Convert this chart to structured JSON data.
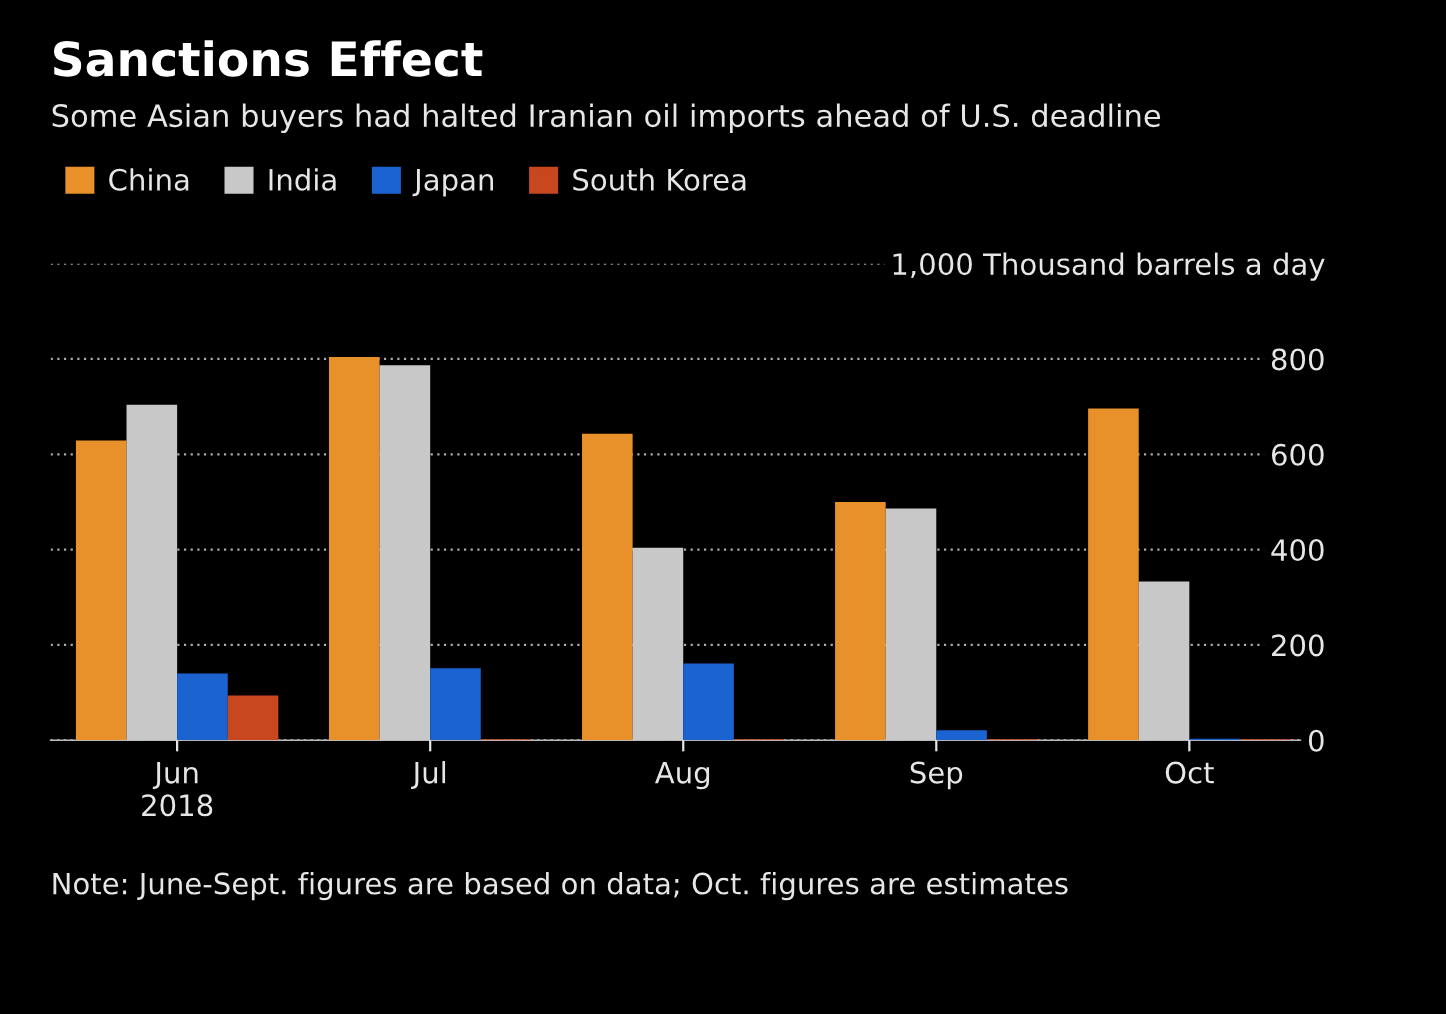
{
  "chart_data": {
    "type": "bar",
    "title": "Sanctions Effect",
    "subtitle": "Some Asian buyers had halted Iranian oil imports ahead of U.S. deadline",
    "categories": [
      "Jun\n2018",
      "Jul",
      "Aug",
      "Sep",
      "Oct"
    ],
    "series": [
      {
        "name": "China",
        "color": "#e8902a",
        "values": [
          629,
          804,
          643,
          500,
          696
        ]
      },
      {
        "name": "India",
        "color": "#c8c8c8",
        "values": [
          704,
          787,
          404,
          486,
          333
        ]
      },
      {
        "name": "Japan",
        "color": "#1a63d0",
        "values": [
          140,
          151,
          161,
          21,
          3
        ]
      },
      {
        "name": "South Korea",
        "color": "#c8471f",
        "values": [
          94,
          2,
          2,
          2,
          2
        ]
      }
    ],
    "ylim": [
      0,
      1000
    ],
    "yticks": [
      0,
      200,
      400,
      600,
      800,
      {
        "value": 1000,
        "label": "1,000 Thousand barrels a day"
      }
    ],
    "grid": "y",
    "legend": "top left",
    "annotations": [
      "Note: June-Sept. figures are based on data; Oct. figures are estimates"
    ]
  }
}
